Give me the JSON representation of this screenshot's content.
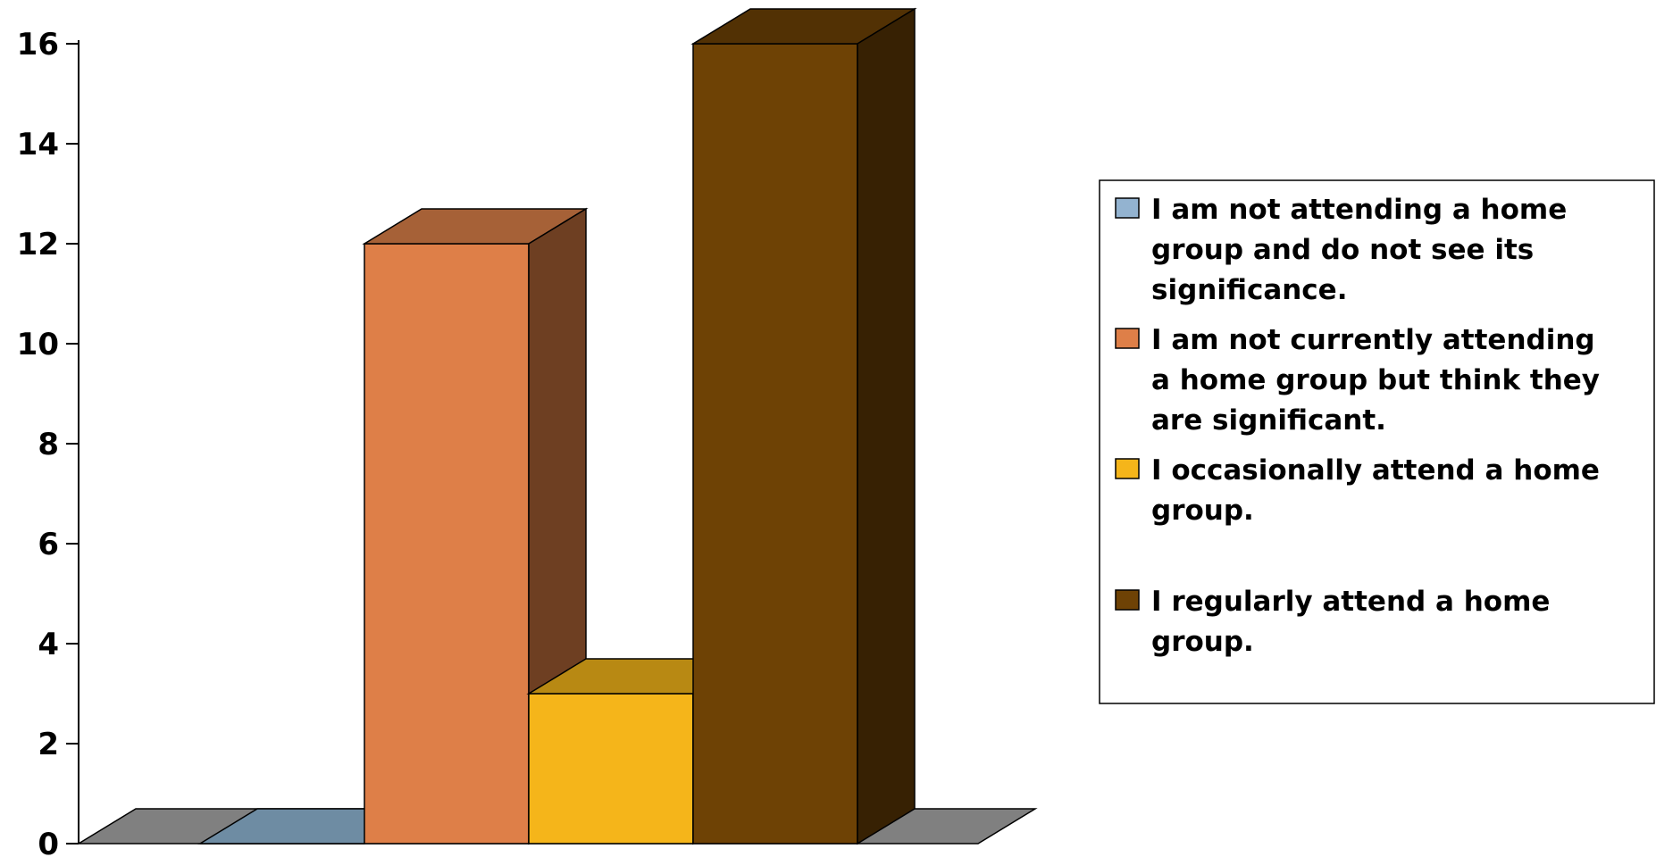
{
  "chart_data": {
    "type": "bar",
    "style": "3d",
    "title": "",
    "xlabel": "",
    "ylabel": "",
    "ylim": [
      0,
      16
    ],
    "yticks": [
      0,
      2,
      4,
      6,
      8,
      10,
      12,
      14,
      16
    ],
    "grid": false,
    "legend_position": "right",
    "series": [
      {
        "name": "I am not attending a home group and do not see its significance.",
        "legend_lines": [
          "I am not attending a home",
          "group and do not see its",
          "significance."
        ],
        "value": 0,
        "color": "#93b3d0",
        "color_top": "#6e8ca3",
        "color_side": "#5d7890"
      },
      {
        "name": "I am not currently attending a home group but think they are significant.",
        "legend_lines": [
          "I am not currently attending",
          "a home group but think they",
          "are significant."
        ],
        "value": 12,
        "color": "#de7f48",
        "color_top": "#a66137",
        "color_side": "#6e3f22"
      },
      {
        "name": "I occasionally attend a home group.",
        "legend_lines": [
          "I occasionally attend a home",
          "group."
        ],
        "value": 3,
        "color": "#f5b51a",
        "color_top": "#b88913",
        "color_side": "#7d5d0d"
      },
      {
        "name": "I regularly attend a home group.",
        "legend_lines": [
          "I regularly attend a home",
          "group."
        ],
        "value": 16,
        "color": "#6e4205",
        "color_top": "#523104",
        "color_side": "#372103"
      }
    ],
    "floor_color": "#808080"
  }
}
